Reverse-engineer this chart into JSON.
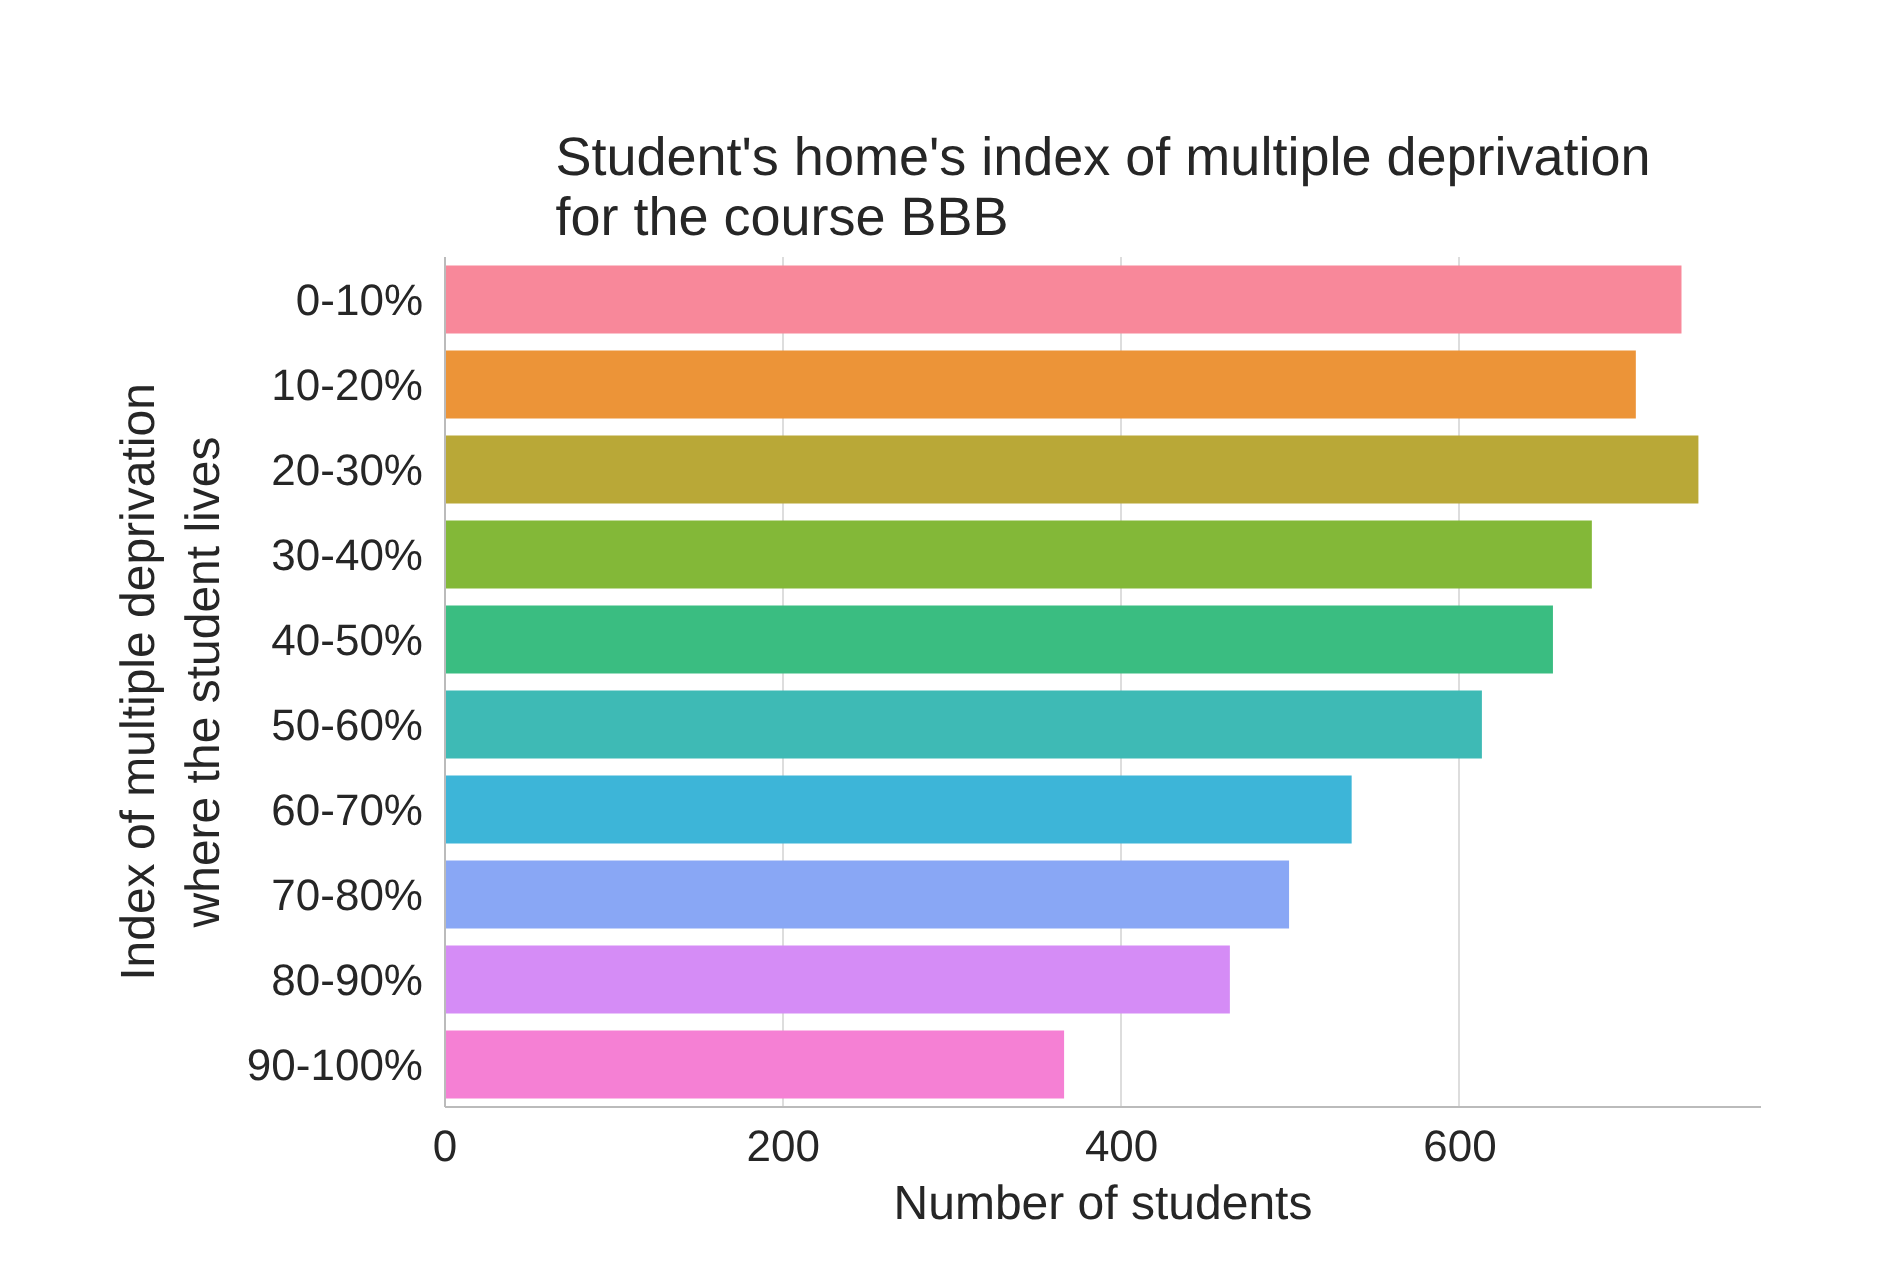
{
  "chart_data": {
    "type": "bar",
    "orientation": "horizontal",
    "title": "Student's home's index of multiple deprivation\nfor the course BBB",
    "xlabel": "Number of students",
    "ylabel": "Index of multiple deprivation\nwhere the student lives",
    "categories": [
      "0-10%",
      "10-20%",
      "20-30%",
      "30-40%",
      "40-50%",
      "50-60%",
      "60-70%",
      "70-80%",
      "80-90%",
      "90-100%"
    ],
    "values": [
      731,
      704,
      741,
      678,
      655,
      613,
      536,
      499,
      464,
      366
    ],
    "colors": [
      "#f8889a",
      "#ec9438",
      "#b9a837",
      "#83b838",
      "#3abd81",
      "#3ebab5",
      "#3db5d8",
      "#89a7f5",
      "#d58cf6",
      "#f580d4"
    ],
    "xlim": [
      0,
      778
    ],
    "xticks": [
      0,
      200,
      400,
      600
    ],
    "grid": "x"
  }
}
